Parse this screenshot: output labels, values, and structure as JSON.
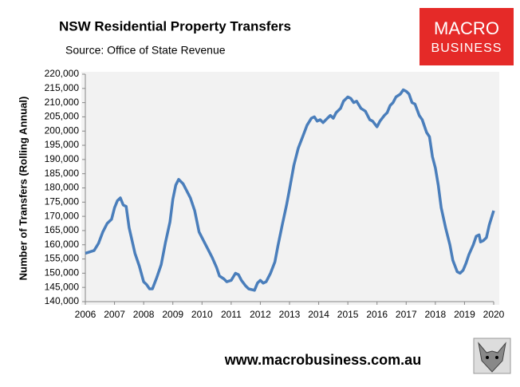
{
  "chart_data": {
    "type": "line",
    "title": "NSW Residential Property Transfers",
    "subtitle": "Source: Office of State Revenue",
    "y_label": "Number of Transfers (Rolling Annual)",
    "x": [
      2006.0,
      2006.15,
      2006.3,
      2006.45,
      2006.6,
      2006.75,
      2006.9,
      2007.0,
      2007.1,
      2007.2,
      2007.3,
      2007.4,
      2007.5,
      2007.7,
      2007.85,
      2008.0,
      2008.1,
      2008.2,
      2008.3,
      2008.45,
      2008.6,
      2008.75,
      2008.9,
      2009.0,
      2009.1,
      2009.2,
      2009.35,
      2009.5,
      2009.6,
      2009.75,
      2009.9,
      2010.05,
      2010.2,
      2010.35,
      2010.5,
      2010.6,
      2010.75,
      2010.85,
      2011.0,
      2011.15,
      2011.25,
      2011.35,
      2011.5,
      2011.6,
      2011.8,
      2011.9,
      2012.0,
      2012.1,
      2012.2,
      2012.35,
      2012.5,
      2012.6,
      2012.75,
      2012.9,
      2013.0,
      2013.15,
      2013.3,
      2013.45,
      2013.6,
      2013.75,
      2013.85,
      2013.95,
      2014.05,
      2014.15,
      2014.3,
      2014.4,
      2014.5,
      2014.6,
      2014.75,
      2014.85,
      2015.0,
      2015.1,
      2015.2,
      2015.3,
      2015.45,
      2015.6,
      2015.75,
      2015.85,
      2016.0,
      2016.1,
      2016.25,
      2016.35,
      2016.45,
      2016.55,
      2016.65,
      2016.8,
      2016.9,
      2017.0,
      2017.1,
      2017.2,
      2017.3,
      2017.45,
      2017.55,
      2017.7,
      2017.8,
      2017.9,
      2018.0,
      2018.1,
      2018.2,
      2018.35,
      2018.5,
      2018.6,
      2018.75,
      2018.85,
      2018.95,
      2019.05,
      2019.15,
      2019.3,
      2019.4,
      2019.5,
      2019.55,
      2019.65,
      2019.75,
      2019.85,
      2020.0
    ],
    "series": [
      {
        "color": "#4a7ebb",
        "values": [
          157000,
          157500,
          158000,
          160500,
          164500,
          167500,
          169000,
          173000,
          175500,
          176500,
          174000,
          173500,
          166000,
          157000,
          152500,
          147000,
          146000,
          144500,
          144500,
          148500,
          153000,
          161000,
          168000,
          176000,
          181000,
          183000,
          181500,
          178500,
          176500,
          172000,
          164500,
          161500,
          158500,
          155500,
          152000,
          149000,
          148000,
          147000,
          147500,
          150000,
          149500,
          147500,
          145500,
          144500,
          144000,
          146500,
          147500,
          146500,
          147000,
          150000,
          154000,
          159500,
          167000,
          174000,
          179500,
          188000,
          194000,
          198000,
          202000,
          204500,
          205000,
          203500,
          204000,
          203000,
          204500,
          205500,
          204500,
          206500,
          208000,
          210500,
          212000,
          211500,
          210000,
          210500,
          208000,
          207000,
          204000,
          203500,
          201500,
          203500,
          205500,
          206500,
          209000,
          210000,
          212000,
          213000,
          214500,
          214000,
          213000,
          210000,
          209500,
          205500,
          204000,
          199500,
          198000,
          191000,
          187000,
          181000,
          173000,
          166000,
          160000,
          154500,
          150500,
          150000,
          151000,
          153500,
          156500,
          160000,
          163000,
          163500,
          161000,
          161500,
          162500,
          167000,
          172000
        ]
      }
    ],
    "xlim": [
      2006,
      2020
    ],
    "xticks": [
      2006,
      2007,
      2008,
      2009,
      2010,
      2011,
      2012,
      2013,
      2014,
      2015,
      2016,
      2017,
      2018,
      2019,
      2020
    ],
    "ylim": [
      140000,
      220000
    ],
    "yticks": [
      {
        "value": 140000,
        "label": "140,000"
      },
      {
        "value": 145000,
        "label": "145,000"
      },
      {
        "value": 150000,
        "label": "150,000"
      },
      {
        "value": 155000,
        "label": "155,000"
      },
      {
        "value": 160000,
        "label": "160,000"
      },
      {
        "value": 165000,
        "label": "165,000"
      },
      {
        "value": 170000,
        "label": "170,000"
      },
      {
        "value": 175000,
        "label": "175,000"
      },
      {
        "value": 180000,
        "label": "180,000"
      },
      {
        "value": 185000,
        "label": "185,000"
      },
      {
        "value": 190000,
        "label": "190,000"
      },
      {
        "value": 195000,
        "label": "195,000"
      },
      {
        "value": 200000,
        "label": "200,000"
      },
      {
        "value": 205000,
        "label": "205,000"
      },
      {
        "value": 210000,
        "label": "210,000"
      },
      {
        "value": 215000,
        "label": "215,000"
      },
      {
        "value": 220000,
        "label": "220,000"
      }
    ]
  },
  "logo": {
    "line1": "MACRO",
    "line2": "BUSINESS"
  },
  "footer_url": "www.macrobusiness.com.au"
}
